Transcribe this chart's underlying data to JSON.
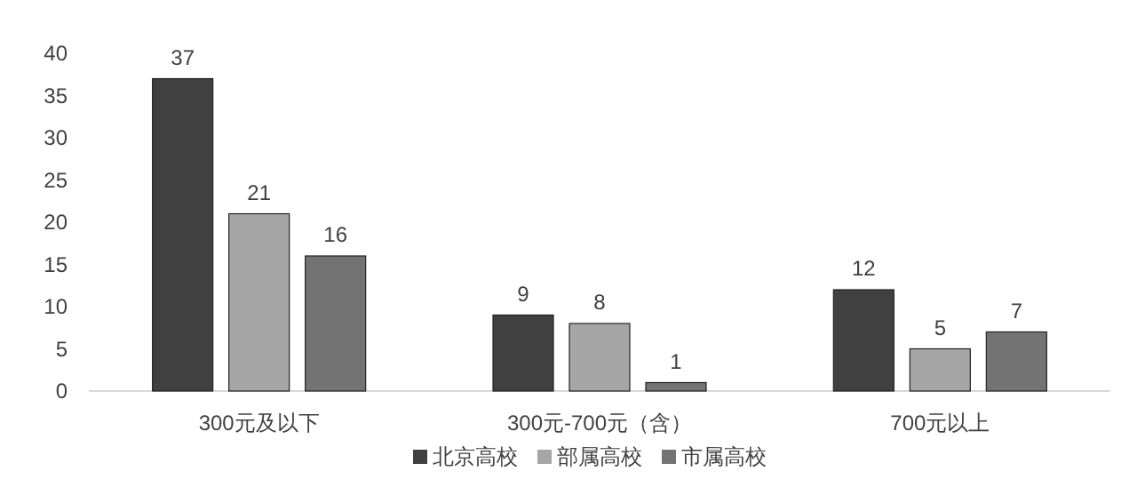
{
  "chart_data": {
    "type": "bar",
    "categories": [
      "300元及以下",
      "300元-700元（含）",
      "700元以上"
    ],
    "series": [
      {
        "name": "北京高校",
        "color": "#404040",
        "values": [
          37,
          9,
          12
        ]
      },
      {
        "name": "部属高校",
        "color": "#a6a6a6",
        "values": [
          21,
          8,
          5
        ]
      },
      {
        "name": "市属高校",
        "color": "#737373",
        "values": [
          16,
          1,
          7
        ]
      }
    ],
    "ylim": [
      0,
      40
    ],
    "yticks": [
      0,
      5,
      10,
      15,
      20,
      25,
      30,
      35,
      40
    ],
    "data_labels": true,
    "legend": "bottom",
    "grid": false
  }
}
